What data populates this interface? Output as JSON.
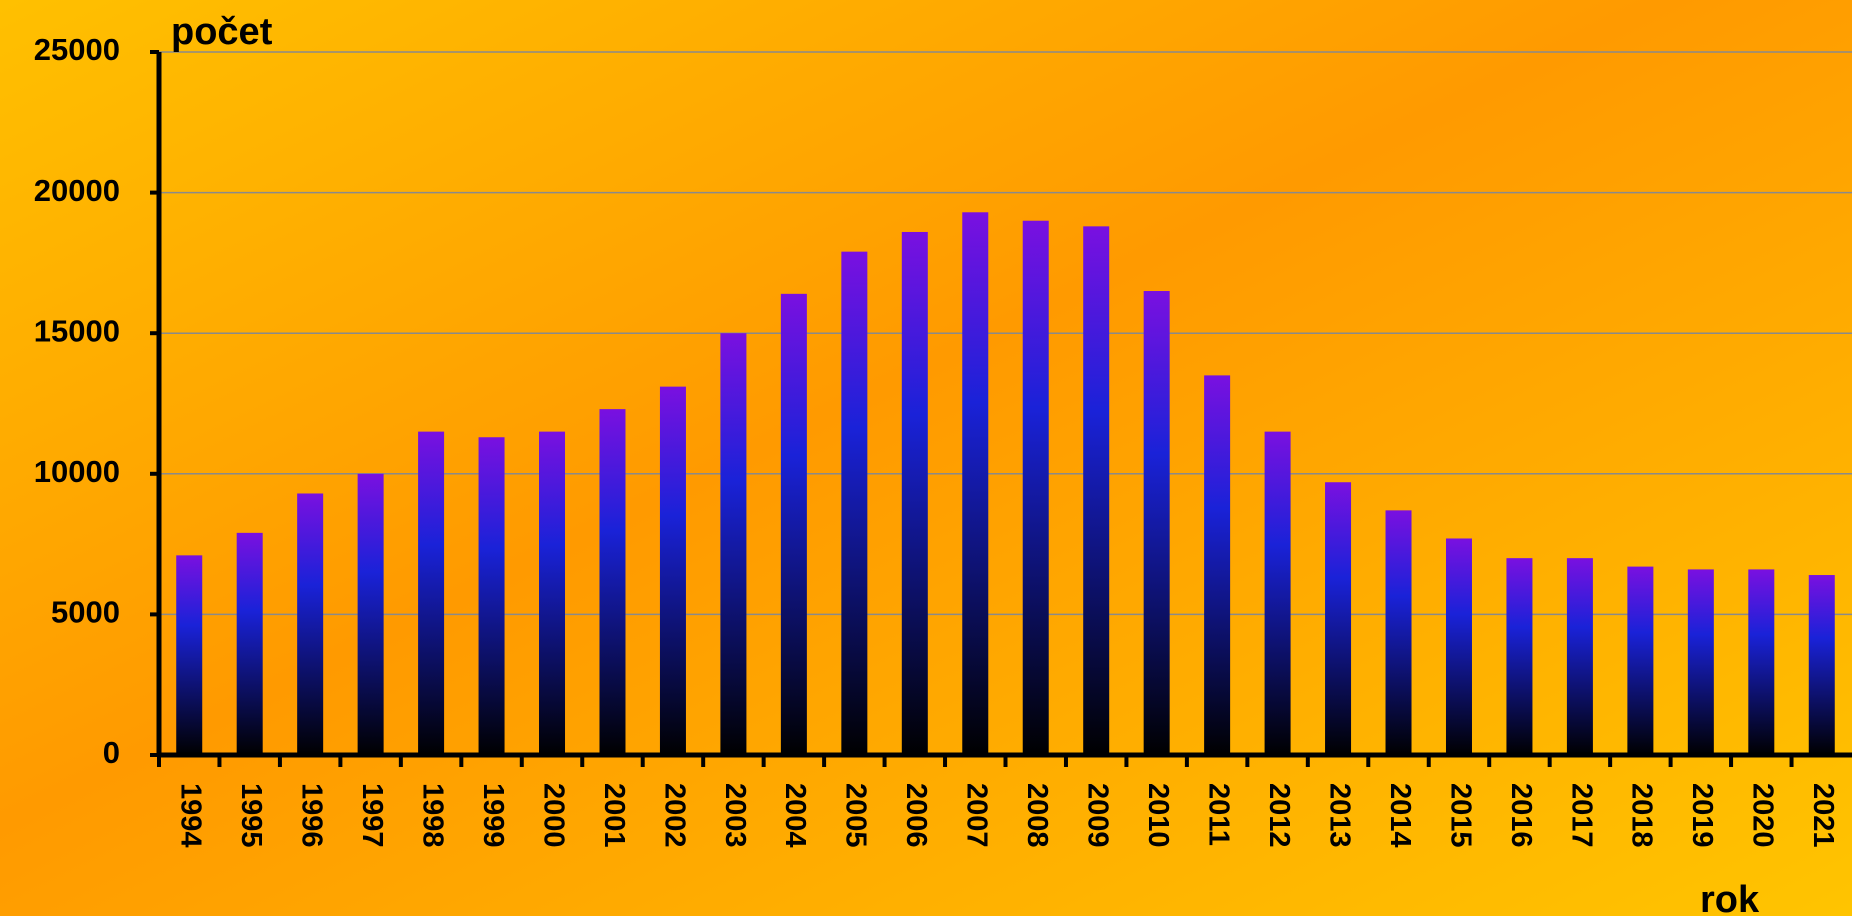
{
  "chart_data": {
    "type": "bar",
    "title": "počet",
    "x_label": "rok",
    "categories": [
      "1994",
      "1995",
      "1996",
      "1997",
      "1998",
      "1999",
      "2000",
      "2001",
      "2002",
      "2003",
      "2004",
      "2005",
      "2006",
      "2007",
      "2008",
      "2009",
      "2010",
      "2011",
      "2012",
      "2013",
      "2014",
      "2015",
      "2016",
      "2017",
      "2018",
      "2019",
      "2020",
      "2021"
    ],
    "values": [
      7100,
      7900,
      9300,
      10000,
      11500,
      11300,
      11500,
      12300,
      13100,
      15000,
      16400,
      17900,
      18600,
      19300,
      19000,
      18800,
      16500,
      13500,
      11500,
      9700,
      8700,
      7700,
      7000,
      7000,
      6700,
      6600,
      6600,
      6400
    ],
    "colors": [
      "#7a10e0",
      "#1a22d8",
      "#000000"
    ],
    "ylim": [
      0,
      25000
    ],
    "yticks": [
      0,
      5000,
      10000,
      15000,
      20000,
      25000
    ],
    "grid": true
  }
}
